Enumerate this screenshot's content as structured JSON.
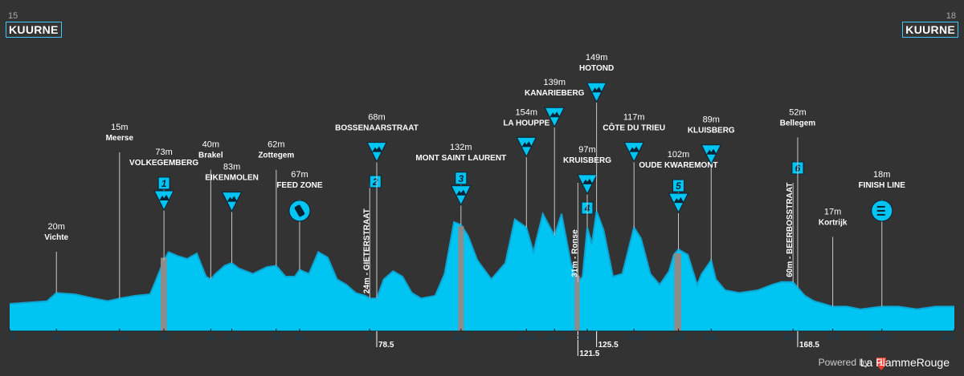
{
  "header": {
    "start_num": "15",
    "start_city": "KUURNE",
    "finish_num": "18",
    "finish_city": "KUURNE"
  },
  "footer": {
    "powered_by": "Powered by",
    "brand": "La FlammeRouge"
  },
  "colors": {
    "background": "#333333",
    "profile": "#00c4f2",
    "profile_dark": "#0aa6d4",
    "cobble": "#8c8c8c",
    "text": "#ffffff",
    "badge_text": "#0b2233"
  },
  "chart_data": {
    "type": "area",
    "title": "",
    "xlabel": "",
    "ylabel": "",
    "x_unit": "km",
    "xlim": [
      0,
      202
    ],
    "x_ticks": [
      0,
      10,
      23.5,
      33,
      43,
      47.5,
      57,
      62,
      77,
      78.5,
      96.5,
      110.5,
      116.5,
      121.5,
      123.5,
      125.5,
      133.5,
      143,
      150,
      167.5,
      168.5,
      176,
      186.5,
      202
    ],
    "profile": {
      "x": [
        0,
        8,
        10,
        14,
        18,
        21,
        23.5,
        27,
        30,
        31,
        33,
        34,
        36,
        38,
        40,
        42,
        43,
        44,
        46,
        47.5,
        49,
        52,
        55,
        57,
        59,
        61,
        62,
        64,
        66,
        68,
        70,
        72,
        74,
        76,
        77,
        78.5,
        80,
        82,
        84,
        86,
        88,
        91,
        93,
        95,
        96.5,
        98,
        100,
        103,
        106,
        108,
        110.5,
        112,
        114,
        116.5,
        118,
        120,
        121.5,
        122.5,
        123.5,
        124.5,
        125.5,
        127,
        129,
        131,
        133.5,
        135,
        137,
        139,
        141,
        142,
        143,
        145,
        147,
        148,
        150,
        151,
        153,
        156,
        160,
        163,
        165,
        167.5,
        168.5,
        170,
        172,
        174,
        176,
        179,
        182,
        186.5,
        190,
        194,
        198,
        202
      ],
      "y": [
        20,
        22,
        28,
        27,
        24,
        22,
        24,
        26,
        27,
        35,
        52,
        58,
        55,
        53,
        57,
        40,
        38,
        42,
        48,
        50,
        46,
        42,
        47,
        48,
        40,
        40,
        45,
        42,
        58,
        54,
        38,
        34,
        28,
        26,
        24,
        24,
        38,
        44,
        40,
        28,
        24,
        26,
        42,
        80,
        78,
        70,
        52,
        38,
        50,
        82,
        76,
        58,
        86,
        70,
        86,
        50,
        36,
        40,
        76,
        64,
        88,
        74,
        40,
        42,
        76,
        68,
        42,
        34,
        44,
        56,
        60,
        56,
        34,
        42,
        52,
        38,
        30,
        28,
        30,
        34,
        36,
        36,
        32,
        26,
        22,
        20,
        18,
        18,
        16,
        18,
        18,
        16,
        18,
        18
      ]
    },
    "cobbles": [
      {
        "from": 32.3,
        "to": 33.6
      },
      {
        "from": 95.9,
        "to": 97.1
      },
      {
        "from": 120.8,
        "to": 121.9
      },
      {
        "from": 142.1,
        "to": 143.6
      }
    ],
    "annotations": [
      {
        "x": 10,
        "alt": "20m",
        "name": "Vichte",
        "kind": "town",
        "style": "upper",
        "level": 1
      },
      {
        "x": 23.5,
        "alt": "15m",
        "name": "Meerse",
        "kind": "town",
        "style": "upper",
        "level": 5
      },
      {
        "x": 33,
        "alt": "73m",
        "name": "VOLKEGEMBERG",
        "kind": "climb",
        "badge": "1",
        "style": "upper",
        "level": 4
      },
      {
        "x": 43,
        "alt": "40m",
        "name": "Brakel",
        "kind": "town",
        "style": "upper",
        "level": 4.3
      },
      {
        "x": 47.5,
        "alt": "83m",
        "name": "EIKENMOLEN",
        "kind": "climb",
        "style": "upper",
        "level": 3.4
      },
      {
        "x": 57,
        "alt": "62m",
        "name": "Zottegem",
        "kind": "town",
        "style": "upper",
        "level": 4.3
      },
      {
        "x": 62,
        "alt": "67m",
        "name": "FEED ZONE",
        "kind": "feed",
        "style": "upper",
        "level": 3.1
      },
      {
        "x": 77,
        "alt": "24m",
        "name": "GIETERSTRAAT",
        "kind": "climb",
        "badge": "2",
        "style": "vertical"
      },
      {
        "x": 78.5,
        "alt": "68m",
        "name": "BOSSENAARSTRAAT",
        "kind": "climb",
        "style": "upper",
        "level": 5.4
      },
      {
        "x": 96.5,
        "alt": "132m",
        "name": "MONT SAINT LAURENT",
        "kind": "climb",
        "badge": "3",
        "style": "upper",
        "level": 4.2
      },
      {
        "x": 110.5,
        "alt": "154m",
        "name": "LA HOUPPE",
        "kind": "climb",
        "style": "upper",
        "level": 5.6
      },
      {
        "x": 116.5,
        "alt": "139m",
        "name": "KANARIEBERG",
        "kind": "climb",
        "style": "upper",
        "level": 6.8
      },
      {
        "x": 121.5,
        "alt": "31m",
        "name": "Ronse",
        "kind": "town",
        "badge": "4",
        "style": "vertical"
      },
      {
        "x": 123.5,
        "alt": "97m",
        "name": "KRUISBERG",
        "kind": "climb",
        "style": "upper",
        "level": 4.1
      },
      {
        "x": 125.5,
        "alt": "149m",
        "name": "HOTOND",
        "kind": "climb",
        "style": "upper",
        "level": 7.8
      },
      {
        "x": 133.5,
        "alt": "117m",
        "name": "CÔTE DU TRIEU",
        "kind": "climb",
        "style": "upper",
        "level": 5.4
      },
      {
        "x": 143,
        "alt": "102m",
        "name": "OUDE KWAREMONT",
        "kind": "climb",
        "badge": "5",
        "style": "upper",
        "level": 3.9
      },
      {
        "x": 150,
        "alt": "89m",
        "name": "KLUISBERG",
        "kind": "climb",
        "style": "upper",
        "level": 5.3
      },
      {
        "x": 167.5,
        "alt": "60m",
        "name": "BEERBOSSTRAAT",
        "kind": "climb",
        "badge": "6",
        "style": "vertical"
      },
      {
        "x": 168.5,
        "alt": "52m",
        "name": "Bellegem",
        "kind": "town",
        "style": "upper",
        "level": 5.6
      },
      {
        "x": 176,
        "alt": "17m",
        "name": "Kortrijk",
        "kind": "town",
        "style": "upper",
        "level": 1.6
      },
      {
        "x": 186.5,
        "alt": "18m",
        "name": "FINISH LINE",
        "kind": "finish",
        "style": "upper",
        "level": 3.1
      }
    ]
  }
}
